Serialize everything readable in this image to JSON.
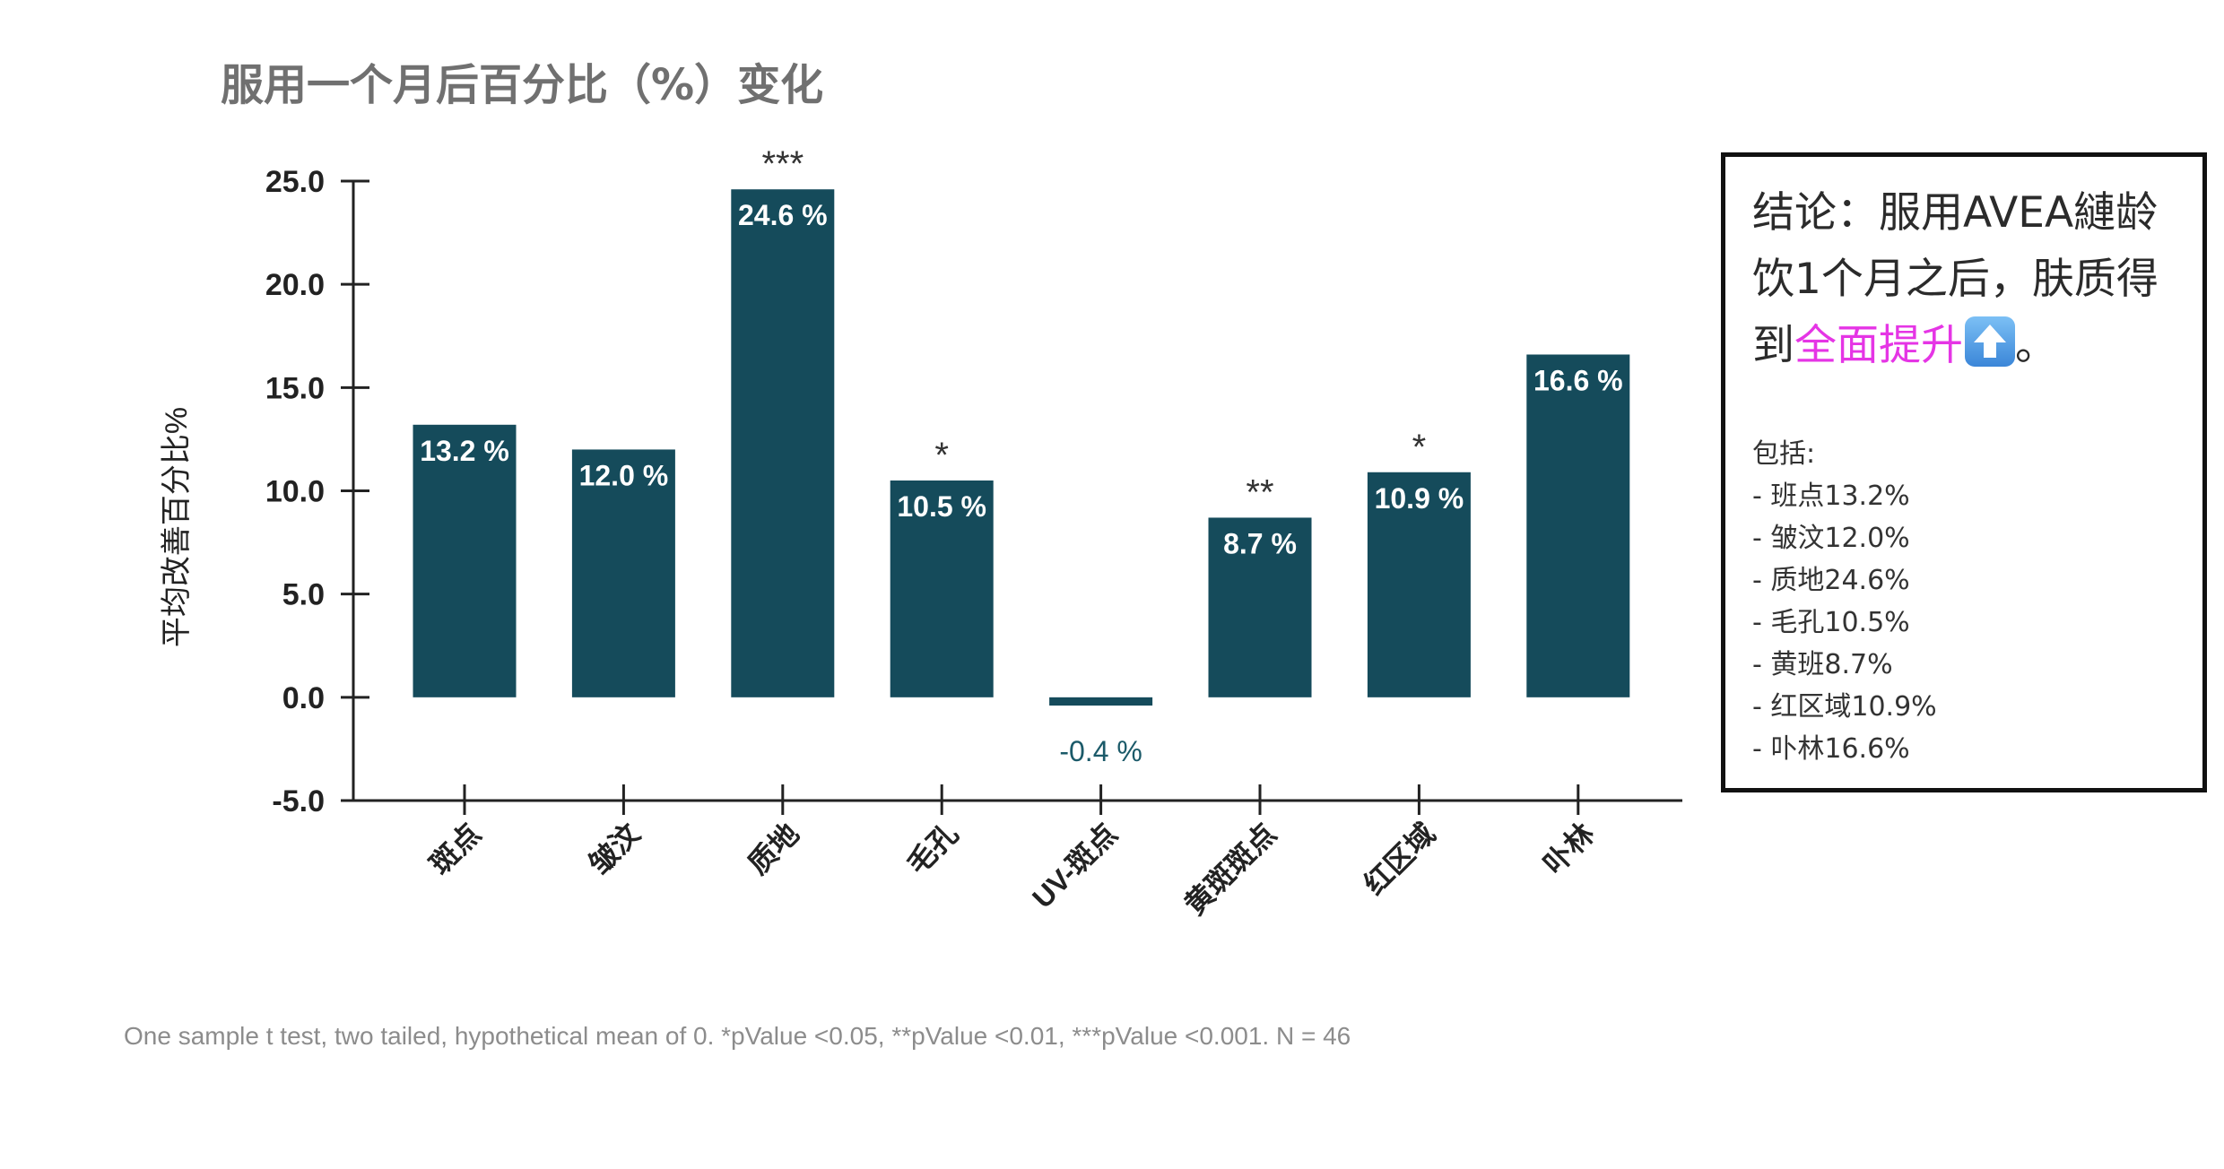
{
  "chart_data": {
    "type": "bar",
    "title": "服用一个月后百分比（%）变化",
    "xlabel": "",
    "ylabel": "平均改善百分比%",
    "categories": [
      "斑点",
      "皱汶",
      "质地",
      "毛孔",
      "UV-斑点",
      "黄斑斑点",
      "红区域",
      "卟林"
    ],
    "values": [
      13.2,
      12.0,
      24.6,
      10.5,
      -0.4,
      8.7,
      10.9,
      16.6
    ],
    "value_labels": [
      "13.2 %",
      "12.0 %",
      "24.6 %",
      "10.5 %",
      "-0.4 %",
      "8.7 %",
      "10.9 %",
      "16.6 %"
    ],
    "significance": [
      "",
      "",
      "***",
      "*",
      "",
      "**",
      "*",
      ""
    ],
    "yticks": [
      "25.0",
      "20.0",
      "15.0",
      "10.0",
      "5.0",
      "0.0",
      "-5.0"
    ],
    "ylim": [
      -5,
      25
    ],
    "grid": false,
    "legend": "none",
    "bar_color": "#154b5b",
    "negative_label_color": "#1b5a69"
  },
  "footnote": "One sample t test, two tailed, hypothetical mean of 0.  *pValue <0.05, **pValue <0.01, ***pValue <0.001. N = 46",
  "conclusion": {
    "line1": "结论：服用AVEA縺龄",
    "line2": "饮1个月之后，肤质得",
    "line3_prefix": "到",
    "line3_highlight": "全面提升",
    "line3_suffix": "。",
    "highlight_color": "#e535e5",
    "icon": "up-arrow-emoji-icon",
    "includes_title": "包括:",
    "items": [
      "- 班点13.2%",
      "- 皱汶12.0%",
      "- 质地24.6%",
      "- 毛孔10.5%",
      "- 黄班8.7%",
      "- 红区域10.9%",
      "- 卟林16.6%"
    ]
  }
}
